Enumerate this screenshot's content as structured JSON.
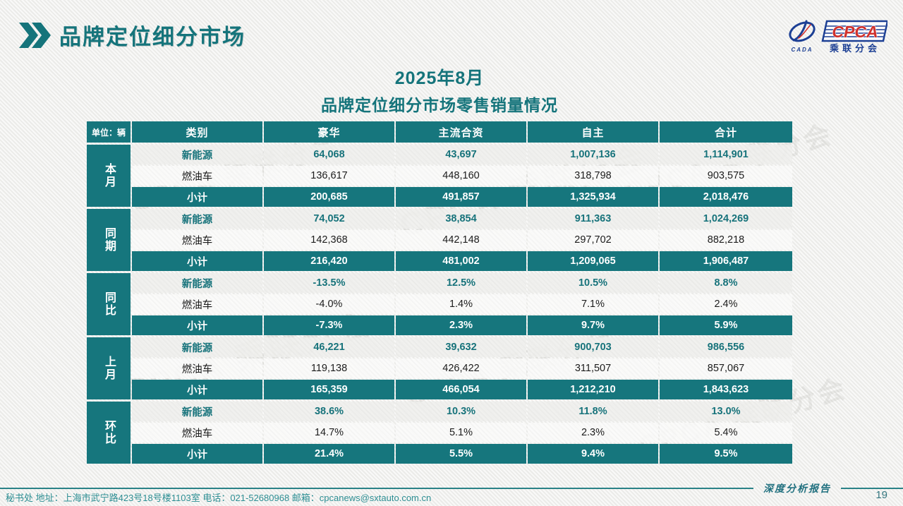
{
  "slide": {
    "title": "品牌定位细分市场",
    "subtitle_line1": "2025年8月",
    "subtitle_line2": "品牌定位细分市场零售销量情况",
    "report_label": "深度分析报告",
    "page_number": "19",
    "footer_address": "秘书处  地址：上海市武宁路423号18号楼1103室  电话：021-52680968   邮箱：cpcanews@sxtauto.com.cn",
    "watermark_text": "CPCA 乘联分会"
  },
  "logo": {
    "acronym": "CPCA",
    "subtitle": "乘联分会",
    "left_mark": "CADA"
  },
  "colors": {
    "teal": "#16767D",
    "nev_text": "#17737B",
    "subtotal_bg": "#16767D",
    "logo_blue": "#1C3F94",
    "logo_red": "#D0312D",
    "footer_text": "#2E8F94"
  },
  "chart_data": {
    "type": "table",
    "title": "2025年8月品牌定位细分市场零售销量情况",
    "unit": "单位：辆",
    "columns": [
      "类别",
      "豪华",
      "主流合资",
      "自主",
      "合计"
    ],
    "sections": [
      {
        "label": "本月",
        "rows": [
          {
            "category": "新能源",
            "kind": "nev",
            "values": [
              "64,068",
              "43,697",
              "1,007,136",
              "1,114,901"
            ]
          },
          {
            "category": "燃油车",
            "kind": "fuel",
            "values": [
              "136,617",
              "448,160",
              "318,798",
              "903,575"
            ]
          },
          {
            "category": "小计",
            "kind": "subtotal",
            "values": [
              "200,685",
              "491,857",
              "1,325,934",
              "2,018,476"
            ]
          }
        ]
      },
      {
        "label": "同期",
        "rows": [
          {
            "category": "新能源",
            "kind": "nev",
            "values": [
              "74,052",
              "38,854",
              "911,363",
              "1,024,269"
            ]
          },
          {
            "category": "燃油车",
            "kind": "fuel",
            "values": [
              "142,368",
              "442,148",
              "297,702",
              "882,218"
            ]
          },
          {
            "category": "小计",
            "kind": "subtotal",
            "values": [
              "216,420",
              "481,002",
              "1,209,065",
              "1,906,487"
            ]
          }
        ]
      },
      {
        "label": "同比",
        "rows": [
          {
            "category": "新能源",
            "kind": "nev",
            "values": [
              "-13.5%",
              "12.5%",
              "10.5%",
              "8.8%"
            ]
          },
          {
            "category": "燃油车",
            "kind": "fuel",
            "values": [
              "-4.0%",
              "1.4%",
              "7.1%",
              "2.4%"
            ]
          },
          {
            "category": "小计",
            "kind": "subtotal",
            "values": [
              "-7.3%",
              "2.3%",
              "9.7%",
              "5.9%"
            ]
          }
        ]
      },
      {
        "label": "上月",
        "rows": [
          {
            "category": "新能源",
            "kind": "nev",
            "values": [
              "46,221",
              "39,632",
              "900,703",
              "986,556"
            ]
          },
          {
            "category": "燃油车",
            "kind": "fuel",
            "values": [
              "119,138",
              "426,422",
              "311,507",
              "857,067"
            ]
          },
          {
            "category": "小计",
            "kind": "subtotal",
            "values": [
              "165,359",
              "466,054",
              "1,212,210",
              "1,843,623"
            ]
          }
        ]
      },
      {
        "label": "环比",
        "rows": [
          {
            "category": "新能源",
            "kind": "nev",
            "values": [
              "38.6%",
              "10.3%",
              "11.8%",
              "13.0%"
            ]
          },
          {
            "category": "燃油车",
            "kind": "fuel",
            "values": [
              "14.7%",
              "5.1%",
              "2.3%",
              "5.4%"
            ]
          },
          {
            "category": "小计",
            "kind": "subtotal",
            "values": [
              "21.4%",
              "5.5%",
              "9.4%",
              "9.5%"
            ]
          }
        ]
      }
    ]
  }
}
